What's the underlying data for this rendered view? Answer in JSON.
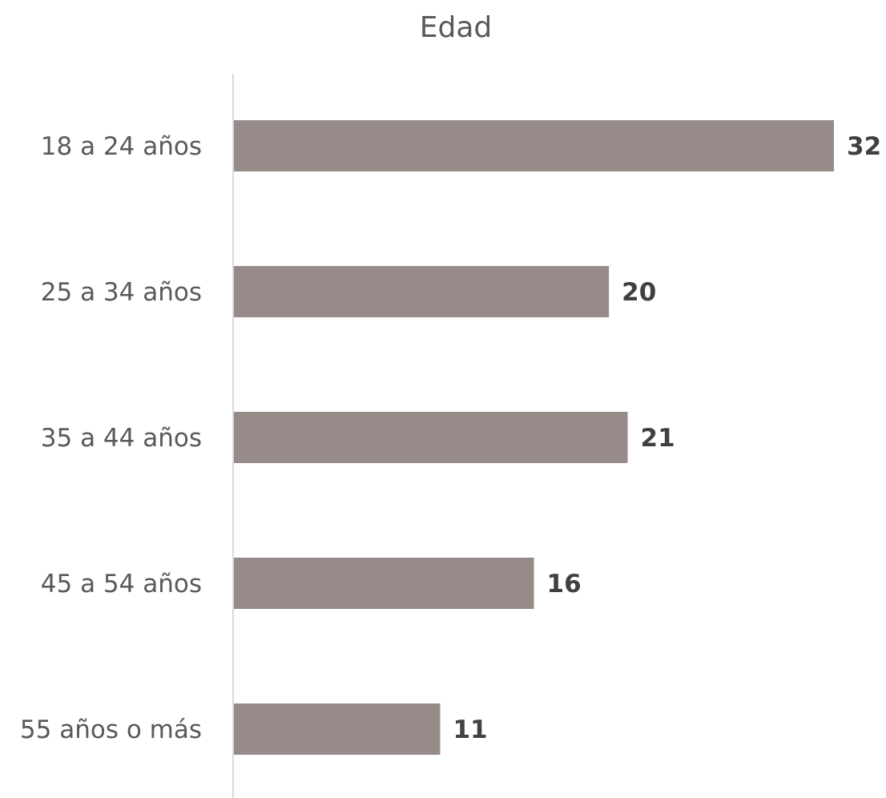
{
  "chart_data": {
    "type": "bar",
    "orientation": "horizontal",
    "title": "Edad",
    "categories": [
      "18 a 24 años",
      "25 a 34 años",
      "35 a 44 años",
      "45 a 54 años",
      "55 años o más"
    ],
    "values": [
      32,
      20,
      21,
      16,
      11
    ],
    "xlabel": "",
    "ylabel": "",
    "xlim": [
      0,
      32
    ],
    "grid": false,
    "legend": "none",
    "data_labels": true,
    "colors": {
      "bar": "#968b89",
      "axis": "#d9d9d9",
      "category_text": "#595959",
      "value_text": "#404040",
      "title_text": "#595959"
    }
  }
}
